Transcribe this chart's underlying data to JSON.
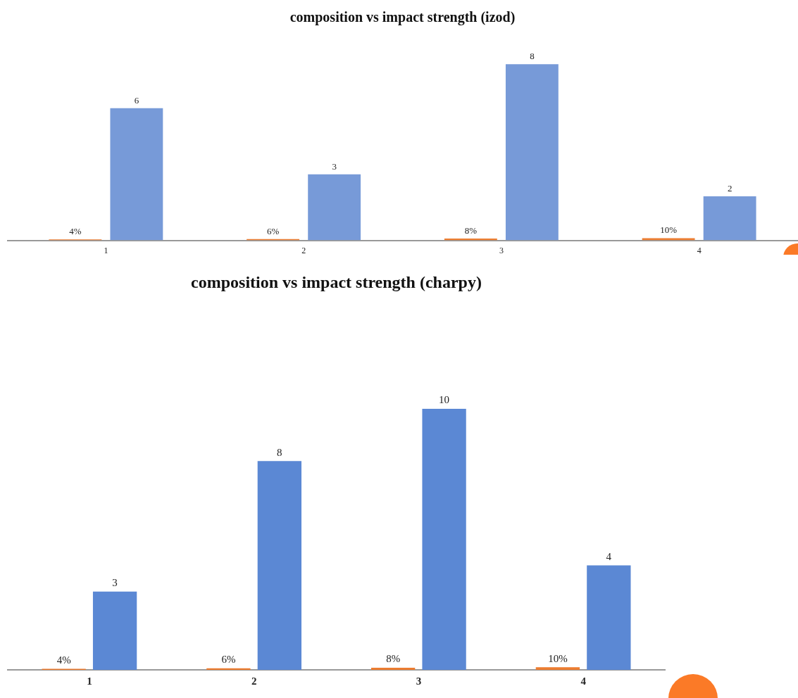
{
  "chart_data": [
    {
      "type": "bar",
      "title": "composition vs impact strength (izod)",
      "categories": [
        "1",
        "2",
        "3",
        "4"
      ],
      "data_labels": true,
      "grid": false,
      "legend": false,
      "series": [
        {
          "color": "#ed7d31",
          "values": [
            0.04,
            0.06,
            0.08,
            0.1
          ],
          "value_labels": [
            "4%",
            "6%",
            "8%",
            "10%"
          ]
        },
        {
          "color": "#779ad8",
          "values": [
            6,
            3,
            8,
            2
          ]
        }
      ]
    },
    {
      "type": "bar",
      "title": "composition vs impact strength (charpy)",
      "categories": [
        "1",
        "2",
        "3",
        "4"
      ],
      "data_labels": true,
      "grid": false,
      "legend": false,
      "series": [
        {
          "color": "#ed7d31",
          "values": [
            0.04,
            0.06,
            0.08,
            0.1
          ],
          "value_labels": [
            "4%",
            "6%",
            "8%",
            "10%"
          ]
        },
        {
          "color": "#5b88d4",
          "values": [
            3,
            8,
            10,
            4
          ]
        }
      ]
    }
  ]
}
